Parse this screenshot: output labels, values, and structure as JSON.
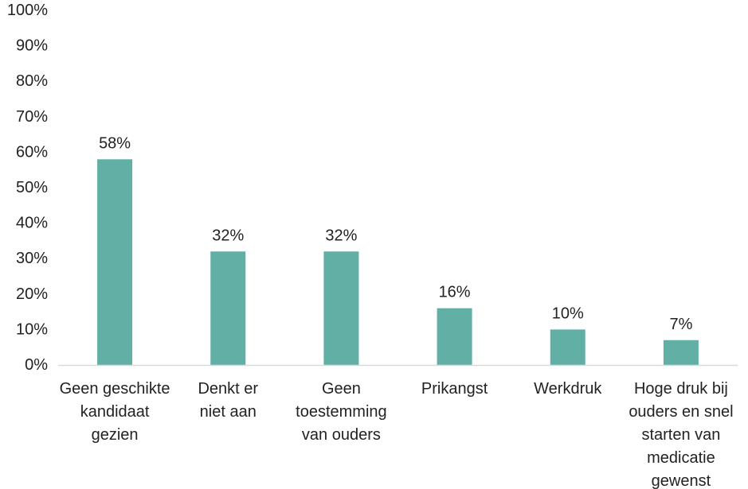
{
  "chart_data": {
    "type": "bar",
    "title": "",
    "xlabel": "",
    "ylabel": "",
    "ylim": [
      0,
      100
    ],
    "y_ticks": [
      "0%",
      "10%",
      "20%",
      "30%",
      "40%",
      "50%",
      "60%",
      "70%",
      "80%",
      "90%",
      "100%"
    ],
    "categories": [
      [
        "Geen geschikte",
        "kandidaat",
        "gezien"
      ],
      [
        "Denkt er",
        "niet aan"
      ],
      [
        "Geen",
        "toestemming",
        "van ouders"
      ],
      [
        "Prikangst"
      ],
      [
        "Werkdruk"
      ],
      [
        "Hoge druk bij",
        "ouders en snel",
        "starten van",
        "medicatie",
        "gewenst"
      ]
    ],
    "values": [
      58,
      32,
      32,
      16,
      10,
      7
    ],
    "value_labels": [
      "58%",
      "32%",
      "32%",
      "16%",
      "10%",
      "7%"
    ],
    "bar_color": "#62afa6",
    "axis_color": "#d9d9d9",
    "grid": false,
    "legend": "none"
  }
}
